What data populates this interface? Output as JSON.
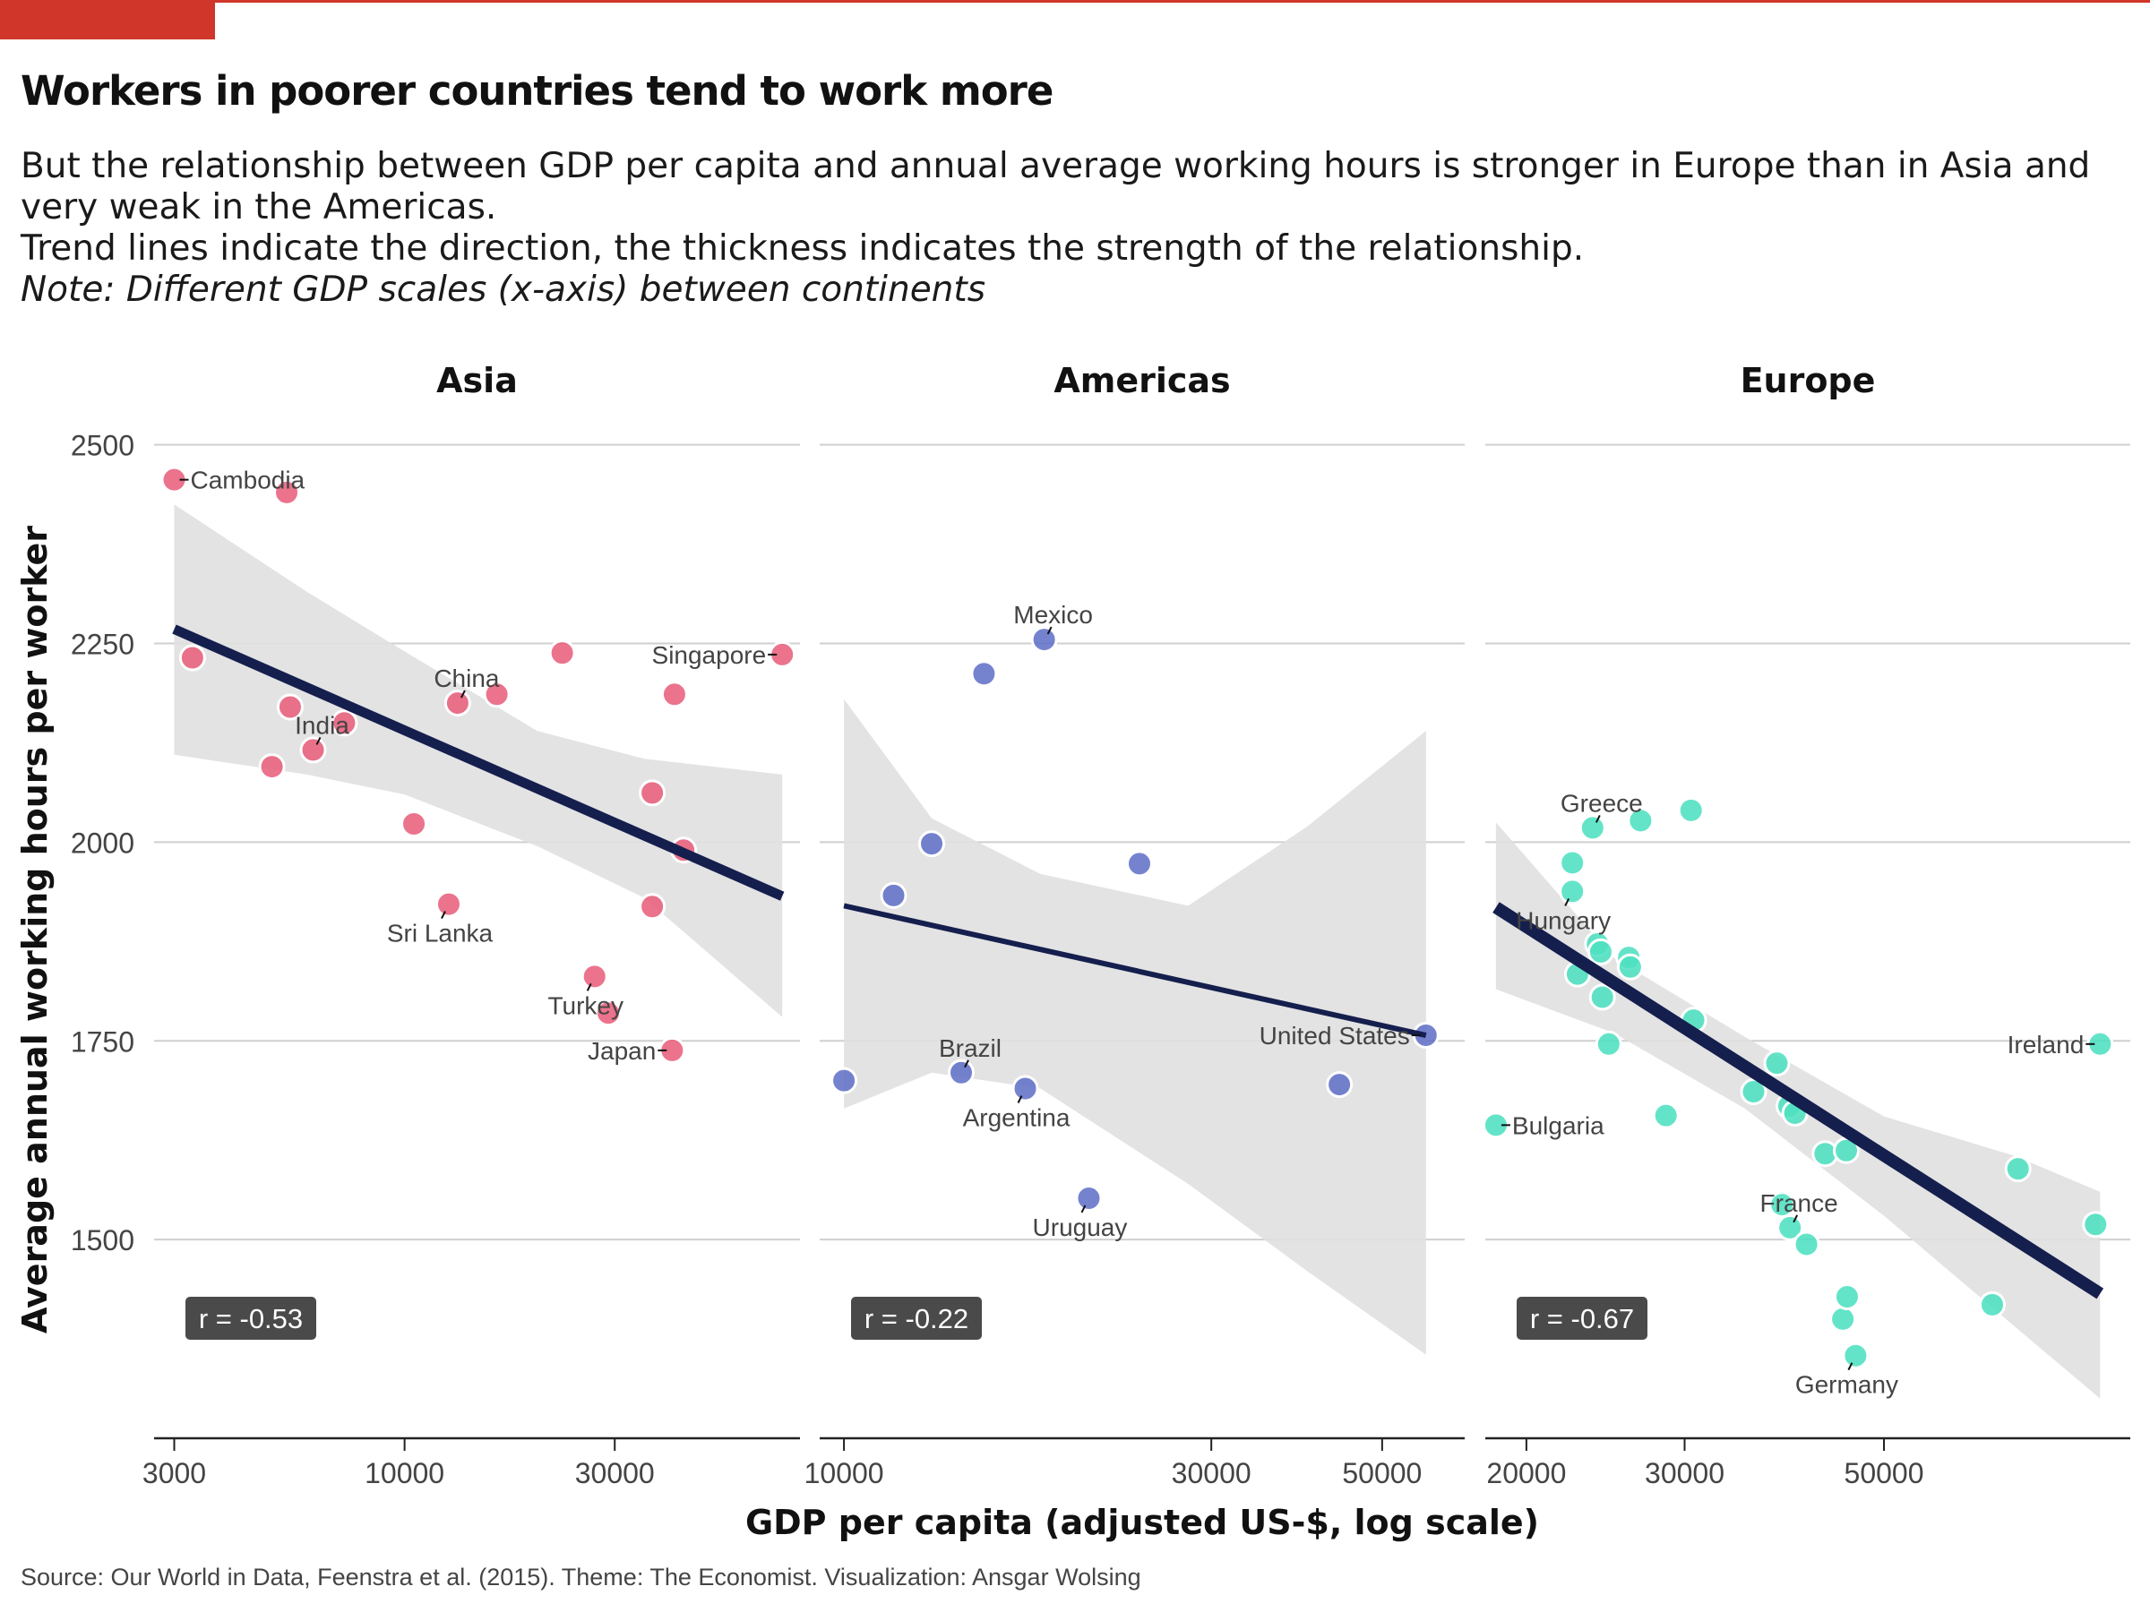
{
  "title": "Workers in poorer countries tend to work more",
  "subtitle": {
    "line1": "But the relationship between GDP per capita and annual average working hours is stronger in Europe than in Asia and very weak in the Americas.",
    "line2": "Trend lines indicate the direction, the thickness indicates the strength of the relationship.",
    "note": "Note: Different GDP scales (x-axis) between continents"
  },
  "caption": "Source: Our World in Data, Feenstra et al. (2015). Theme: The Economist. Visualization: Ansgar Wolsing",
  "colors": {
    "accent_red": "#d0362a",
    "asia": "#e8607c",
    "americas": "#6272c8",
    "europe": "#4de0c0",
    "trend": "#151f4e",
    "ci_band": "#e1e1e1",
    "grid": "#cfcfcf"
  },
  "chart_data": {
    "type": "scatter",
    "xlabel": "GDP per capita (adjusted US-$, log scale)",
    "ylabel": "Average annual working hours per worker",
    "x_scale": "log",
    "y_ticks": [
      1500,
      1750,
      2000,
      2250,
      2500
    ],
    "ylim": [
      1250,
      2530
    ],
    "grid": true,
    "panels": [
      {
        "name": "Asia",
        "xlim": [
          2700,
          79000
        ],
        "x_ticks": [
          3000,
          10000,
          30000
        ],
        "r_label": "r = -0.53",
        "trend": {
          "x": [
            3000,
            72000
          ],
          "y": [
            2268,
            1932
          ]
        },
        "ci_band": {
          "x": [
            3000,
            6000,
            10000,
            20000,
            35000,
            72000
          ],
          "lower": [
            2110,
            2085,
            2060,
            1995,
            1930,
            1780
          ],
          "upper": [
            2425,
            2315,
            2240,
            2140,
            2105,
            2085
          ]
        },
        "points": [
          {
            "x": 3000,
            "y": 2456,
            "label": "Cambodia"
          },
          {
            "x": 5400,
            "y": 2440,
            "label": ""
          },
          {
            "x": 3300,
            "y": 2232,
            "label": ""
          },
          {
            "x": 5500,
            "y": 2170,
            "label": ""
          },
          {
            "x": 6200,
            "y": 2116,
            "label": "India"
          },
          {
            "x": 7300,
            "y": 2150,
            "label": ""
          },
          {
            "x": 5000,
            "y": 2095,
            "label": ""
          },
          {
            "x": 10500,
            "y": 2023,
            "label": ""
          },
          {
            "x": 13200,
            "y": 2175,
            "label": "China"
          },
          {
            "x": 16200,
            "y": 2186,
            "label": ""
          },
          {
            "x": 12600,
            "y": 1922,
            "label": "Sri Lanka"
          },
          {
            "x": 22800,
            "y": 2238,
            "label": ""
          },
          {
            "x": 41000,
            "y": 2186,
            "label": ""
          },
          {
            "x": 72000,
            "y": 2236,
            "label": "Singapore"
          },
          {
            "x": 36500,
            "y": 2062,
            "label": ""
          },
          {
            "x": 43000,
            "y": 1990,
            "label": ""
          },
          {
            "x": 36500,
            "y": 1919,
            "label": ""
          },
          {
            "x": 27000,
            "y": 1831,
            "label": "Turkey"
          },
          {
            "x": 29000,
            "y": 1785,
            "label": ""
          },
          {
            "x": 40500,
            "y": 1738,
            "label": "Japan"
          }
        ]
      },
      {
        "name": "Americas",
        "xlim": [
          9300,
          64000
        ],
        "x_ticks": [
          10000,
          30000,
          50000
        ],
        "r_label": "r = -0.22",
        "trend": {
          "x": [
            10000,
            57000
          ],
          "y": [
            1920,
            1757
          ]
        },
        "ci_band": {
          "x": [
            10000,
            13000,
            18000,
            28000,
            40000,
            57000
          ],
          "lower": [
            1665,
            1710,
            1690,
            1570,
            1460,
            1355
          ],
          "upper": [
            2180,
            2030,
            1960,
            1920,
            2020,
            2140
          ]
        },
        "points": [
          {
            "x": 10000,
            "y": 1700,
            "label": ""
          },
          {
            "x": 11600,
            "y": 1933,
            "label": ""
          },
          {
            "x": 13000,
            "y": 1998,
            "label": ""
          },
          {
            "x": 14200,
            "y": 1710,
            "label": "Brazil"
          },
          {
            "x": 15200,
            "y": 2212,
            "label": ""
          },
          {
            "x": 17200,
            "y": 1690,
            "label": "Argentina"
          },
          {
            "x": 18200,
            "y": 2255,
            "label": "Mexico"
          },
          {
            "x": 20800,
            "y": 1552,
            "label": "Uruguay"
          },
          {
            "x": 24200,
            "y": 1973,
            "label": ""
          },
          {
            "x": 44000,
            "y": 1695,
            "label": ""
          },
          {
            "x": 57000,
            "y": 1757,
            "label": "United States"
          }
        ]
      },
      {
        "name": "Europe",
        "xlim": [
          18000,
          94000
        ],
        "x_ticks": [
          20000,
          30000,
          50000
        ],
        "r_label": "r = -0.67",
        "trend": {
          "x": [
            18500,
            87000
          ],
          "y": [
            1918,
            1432
          ]
        },
        "ci_band": {
          "x": [
            18500,
            25000,
            35000,
            50000,
            70000,
            87000
          ],
          "lower": [
            1815,
            1760,
            1665,
            1530,
            1390,
            1300
          ],
          "upper": [
            2025,
            1855,
            1755,
            1655,
            1605,
            1560
          ]
        },
        "points": [
          {
            "x": 18500,
            "y": 1644,
            "label": "Bulgaria"
          },
          {
            "x": 22500,
            "y": 1974,
            "label": ""
          },
          {
            "x": 22500,
            "y": 1938,
            "label": "Hungary"
          },
          {
            "x": 22800,
            "y": 1834,
            "label": ""
          },
          {
            "x": 23700,
            "y": 2018,
            "label": "Greece"
          },
          {
            "x": 24000,
            "y": 1872,
            "label": ""
          },
          {
            "x": 24200,
            "y": 1862,
            "label": ""
          },
          {
            "x": 24300,
            "y": 1805,
            "label": ""
          },
          {
            "x": 24700,
            "y": 1746,
            "label": ""
          },
          {
            "x": 26000,
            "y": 1855,
            "label": ""
          },
          {
            "x": 26100,
            "y": 1843,
            "label": ""
          },
          {
            "x": 26800,
            "y": 2027,
            "label": ""
          },
          {
            "x": 28600,
            "y": 1656,
            "label": ""
          },
          {
            "x": 30500,
            "y": 2040,
            "label": ""
          },
          {
            "x": 30700,
            "y": 1776,
            "label": ""
          },
          {
            "x": 35800,
            "y": 1686,
            "label": ""
          },
          {
            "x": 38000,
            "y": 1722,
            "label": ""
          },
          {
            "x": 38500,
            "y": 1544,
            "label": ""
          },
          {
            "x": 39200,
            "y": 1668,
            "label": ""
          },
          {
            "x": 39300,
            "y": 1515,
            "label": "France"
          },
          {
            "x": 39800,
            "y": 1659,
            "label": ""
          },
          {
            "x": 41000,
            "y": 1494,
            "label": ""
          },
          {
            "x": 43000,
            "y": 1608,
            "label": ""
          },
          {
            "x": 45400,
            "y": 1612,
            "label": ""
          },
          {
            "x": 45000,
            "y": 1400,
            "label": ""
          },
          {
            "x": 45500,
            "y": 1428,
            "label": ""
          },
          {
            "x": 46500,
            "y": 1354,
            "label": "Germany"
          },
          {
            "x": 66000,
            "y": 1418,
            "label": ""
          },
          {
            "x": 70500,
            "y": 1589,
            "label": ""
          },
          {
            "x": 86000,
            "y": 1519,
            "label": ""
          },
          {
            "x": 87000,
            "y": 1746,
            "label": "Ireland"
          }
        ]
      }
    ]
  }
}
